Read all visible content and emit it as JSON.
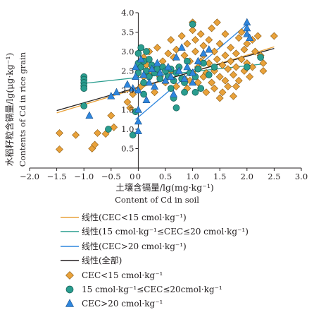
{
  "chart_data": {
    "type": "scatter",
    "xlabel_cn": "土壤含镉量/lg(mg·kg⁻¹)",
    "xlabel_en": "Content of Cd in soil",
    "ylabel_cn": "水稻籽粒含镉量/lg(μg·kg⁻¹)",
    "ylabel_en": "Contents of Cd in rice grain",
    "xlim": [
      -2.0,
      3.0
    ],
    "ylim": [
      0.0,
      4.0
    ],
    "xticks": [
      "−2.0",
      "−1.5",
      "−1.0",
      "−0.5",
      "0",
      "0.5",
      "1.0",
      "1.5",
      "2.0",
      "2.5",
      "3.0"
    ],
    "yticks": [
      "0",
      "0.5",
      "1.0",
      "1.5",
      "2.0",
      "2.5",
      "3.0",
      "3.5",
      "4.0"
    ],
    "grid": false,
    "legend_position": "below",
    "colors": {
      "low_cec": "#e9a23b",
      "mid_cec": "#2a9d8f",
      "high_cec": "#2e86de",
      "all": "#231f20"
    },
    "fit_lines": [
      {
        "name": "线性(CEC<15 cmol·kg⁻¹)",
        "color": "#e9a23b",
        "x": [
          -1.5,
          2.5
        ],
        "y": [
          1.42,
          3.12
        ]
      },
      {
        "name": "线性(15 cmol·kg⁻¹≤CEC≤20 cmol·kg⁻¹)",
        "color": "#2a9d8f",
        "x": [
          -1.0,
          2.3
        ],
        "y": [
          2.18,
          2.68
        ]
      },
      {
        "name": "线性(CEC>20 cmol·kg⁻¹)",
        "color": "#2e86de",
        "x": [
          -0.05,
          2.0
        ],
        "y": [
          1.25,
          3.7
        ]
      },
      {
        "name": "线性(全部)",
        "color": "#231f20",
        "x": [
          -1.5,
          2.5
        ],
        "y": [
          1.48,
          3.08
        ]
      }
    ],
    "series": [
      {
        "name": "CEC<15 cmol·kg⁻¹",
        "marker": "diamond",
        "color": "#e9a23b",
        "points": [
          [
            -1.45,
            0.48
          ],
          [
            -1.45,
            0.9
          ],
          [
            -1.15,
            0.85
          ],
          [
            -0.85,
            0.5
          ],
          [
            -0.8,
            0.6
          ],
          [
            -0.75,
            0.9
          ],
          [
            -0.6,
            0.88
          ],
          [
            -0.5,
            1.35
          ],
          [
            -0.45,
            1.05
          ],
          [
            -0.2,
            1.7
          ],
          [
            -0.15,
            1.55
          ],
          [
            -0.1,
            1.9
          ],
          [
            0.0,
            2.55
          ],
          [
            0.05,
            2.1
          ],
          [
            0.1,
            2.35
          ],
          [
            0.1,
            2.85
          ],
          [
            0.15,
            2.65
          ],
          [
            0.2,
            2.4
          ],
          [
            0.2,
            3.0
          ],
          [
            0.25,
            2.55
          ],
          [
            0.3,
            1.95
          ],
          [
            0.35,
            3.1
          ],
          [
            0.4,
            2.35
          ],
          [
            0.45,
            2.75
          ],
          [
            0.5,
            2.2
          ],
          [
            0.55,
            2.95
          ],
          [
            0.6,
            2.5
          ],
          [
            0.6,
            3.3
          ],
          [
            0.65,
            2.85
          ],
          [
            0.7,
            2.1
          ],
          [
            0.7,
            3.05
          ],
          [
            0.75,
            2.6
          ],
          [
            0.8,
            3.4
          ],
          [
            0.85,
            2.3
          ],
          [
            0.85,
            2.9
          ],
          [
            0.9,
            3.2
          ],
          [
            0.9,
            2.05
          ],
          [
            0.95,
            2.75
          ],
          [
            1.0,
            3.55
          ],
          [
            1.0,
            2.45
          ],
          [
            1.05,
            3.0
          ],
          [
            1.05,
            3.3
          ],
          [
            1.1,
            2.6
          ],
          [
            1.1,
            2.2
          ],
          [
            1.15,
            3.45
          ],
          [
            1.2,
            2.9
          ],
          [
            1.2,
            3.15
          ],
          [
            1.25,
            2.45
          ],
          [
            1.25,
            1.95
          ],
          [
            1.3,
            3.3
          ],
          [
            1.3,
            2.7
          ],
          [
            1.35,
            3.6
          ],
          [
            1.35,
            2.2
          ],
          [
            1.4,
            3.0
          ],
          [
            1.4,
            2.5
          ],
          [
            1.45,
            3.75
          ],
          [
            1.45,
            2.8
          ],
          [
            1.5,
            1.8
          ],
          [
            1.5,
            2.35
          ],
          [
            1.5,
            3.2
          ],
          [
            1.55,
            2.65
          ],
          [
            1.55,
            1.95
          ],
          [
            1.6,
            3.45
          ],
          [
            1.6,
            2.9
          ],
          [
            1.65,
            2.1
          ],
          [
            1.65,
            2.55
          ],
          [
            1.7,
            2.75
          ],
          [
            1.7,
            3.1
          ],
          [
            1.75,
            2.4
          ],
          [
            1.75,
            1.85
          ],
          [
            1.8,
            2.95
          ],
          [
            1.8,
            2.6
          ],
          [
            1.85,
            3.35
          ],
          [
            1.85,
            2.25
          ],
          [
            1.9,
            2.8
          ],
          [
            1.9,
            3.5
          ],
          [
            1.95,
            2.5
          ],
          [
            1.95,
            3.05
          ],
          [
            2.0,
            2.7
          ],
          [
            2.0,
            3.2
          ],
          [
            2.05,
            2.35
          ],
          [
            2.1,
            3.3
          ],
          [
            2.1,
            2.6
          ],
          [
            2.15,
            3.0
          ],
          [
            2.2,
            3.4
          ],
          [
            2.25,
            2.9
          ],
          [
            2.3,
            2.5
          ],
          [
            2.3,
            2.7
          ],
          [
            2.5,
            3.4
          ],
          [
            1.0,
            3.75
          ],
          [
            1.15,
            2.75
          ],
          [
            0.95,
            2.25
          ],
          [
            1.4,
            2.05
          ],
          [
            1.2,
            2.35
          ],
          [
            1.6,
            2.25
          ],
          [
            1.8,
            2.1
          ]
        ]
      },
      {
        "name": "15 cmol·kg⁻¹≤CEC≤20cmol·kg⁻¹",
        "marker": "circle",
        "color": "#2a9d8f",
        "points": [
          [
            -1.0,
            2.35
          ],
          [
            -1.0,
            2.28
          ],
          [
            -1.0,
            2.2
          ],
          [
            -1.0,
            2.12
          ],
          [
            -1.0,
            2.05
          ],
          [
            -1.0,
            1.6
          ],
          [
            -0.55,
            1.0
          ],
          [
            -0.1,
            0.85
          ],
          [
            -0.05,
            1.45
          ],
          [
            0.0,
            2.95
          ],
          [
            0.0,
            2.7
          ],
          [
            0.0,
            2.45
          ],
          [
            0.05,
            3.1
          ],
          [
            0.05,
            2.6
          ],
          [
            0.1,
            2.2
          ],
          [
            0.1,
            2.75
          ],
          [
            0.1,
            1.9
          ],
          [
            0.15,
            2.5
          ],
          [
            0.15,
            3.0
          ],
          [
            0.2,
            2.35
          ],
          [
            0.2,
            2.8
          ],
          [
            0.25,
            2.65
          ],
          [
            0.3,
            2.45
          ],
          [
            0.35,
            2.55
          ],
          [
            0.4,
            2.3
          ],
          [
            0.45,
            2.6
          ],
          [
            0.5,
            2.5
          ],
          [
            0.55,
            2.35
          ],
          [
            0.6,
            2.55
          ],
          [
            0.6,
            2.05
          ],
          [
            0.65,
            1.8
          ],
          [
            0.65,
            2.25
          ],
          [
            0.7,
            2.45
          ],
          [
            0.7,
            1.55
          ],
          [
            0.75,
            2.6
          ],
          [
            0.8,
            2.3
          ],
          [
            0.85,
            1.95
          ],
          [
            0.85,
            2.2
          ],
          [
            0.9,
            2.75
          ],
          [
            0.95,
            2.45
          ],
          [
            1.0,
            3.7
          ],
          [
            1.05,
            2.35
          ],
          [
            1.05,
            1.95
          ],
          [
            1.1,
            2.55
          ],
          [
            1.15,
            2.05
          ],
          [
            1.2,
            2.7
          ],
          [
            1.3,
            2.4
          ],
          [
            1.4,
            2.6
          ],
          [
            2.0,
            2.6
          ],
          [
            2.25,
            2.85
          ]
        ]
      },
      {
        "name": "CEC>20 cmol·kg⁻¹",
        "marker": "triangle",
        "color": "#2e86de",
        "points": [
          [
            -0.9,
            1.35
          ],
          [
            -0.5,
            1.85
          ],
          [
            -0.4,
            1.95
          ],
          [
            -0.2,
            2.15
          ],
          [
            -0.1,
            2.05
          ],
          [
            -0.05,
            2.6
          ],
          [
            -0.05,
            2.35
          ],
          [
            0.0,
            1.5
          ],
          [
            0.0,
            1.2
          ],
          [
            0.0,
            0.95
          ],
          [
            0.0,
            2.0
          ],
          [
            0.05,
            2.8
          ],
          [
            0.1,
            2.4
          ],
          [
            0.15,
            1.75
          ],
          [
            0.2,
            2.2
          ],
          [
            0.25,
            2.55
          ],
          [
            0.3,
            2.1
          ],
          [
            0.35,
            2.7
          ],
          [
            0.4,
            2.45
          ],
          [
            0.5,
            2.25
          ],
          [
            0.55,
            2.6
          ],
          [
            0.6,
            2.35
          ],
          [
            0.65,
            1.9
          ],
          [
            0.7,
            2.85
          ],
          [
            0.75,
            2.5
          ],
          [
            0.8,
            3.1
          ],
          [
            0.85,
            2.3
          ],
          [
            0.9,
            2.6
          ],
          [
            1.0,
            2.45
          ],
          [
            1.0,
            2.2
          ],
          [
            1.1,
            2.75
          ],
          [
            1.2,
            2.95
          ],
          [
            1.3,
            3.05
          ],
          [
            2.0,
            3.75
          ],
          [
            2.0,
            3.6
          ],
          [
            2.0,
            3.45
          ],
          [
            2.05,
            3.35
          ]
        ]
      }
    ]
  },
  "legend": [
    {
      "type": "line",
      "color": "#e9a23b",
      "label": "线性(CEC<15 cmol·kg⁻¹)"
    },
    {
      "type": "line",
      "color": "#2a9d8f",
      "label": "线性(15 cmol·kg⁻¹≤CEC≤20 cmol·kg⁻¹)"
    },
    {
      "type": "line",
      "color": "#2e86de",
      "label": "线性(CEC>20 cmol·kg⁻¹)"
    },
    {
      "type": "line",
      "color": "#231f20",
      "label": "线性(全部)"
    },
    {
      "type": "diamond",
      "color": "#e9a23b",
      "label": "CEC<15 cmol·kg⁻¹"
    },
    {
      "type": "circle",
      "color": "#2a9d8f",
      "label": "15 cmol·kg⁻¹≤CEC≤20cmol·kg⁻¹"
    },
    {
      "type": "triangle",
      "color": "#2e86de",
      "label": "CEC>20 cmol·kg⁻¹"
    }
  ]
}
